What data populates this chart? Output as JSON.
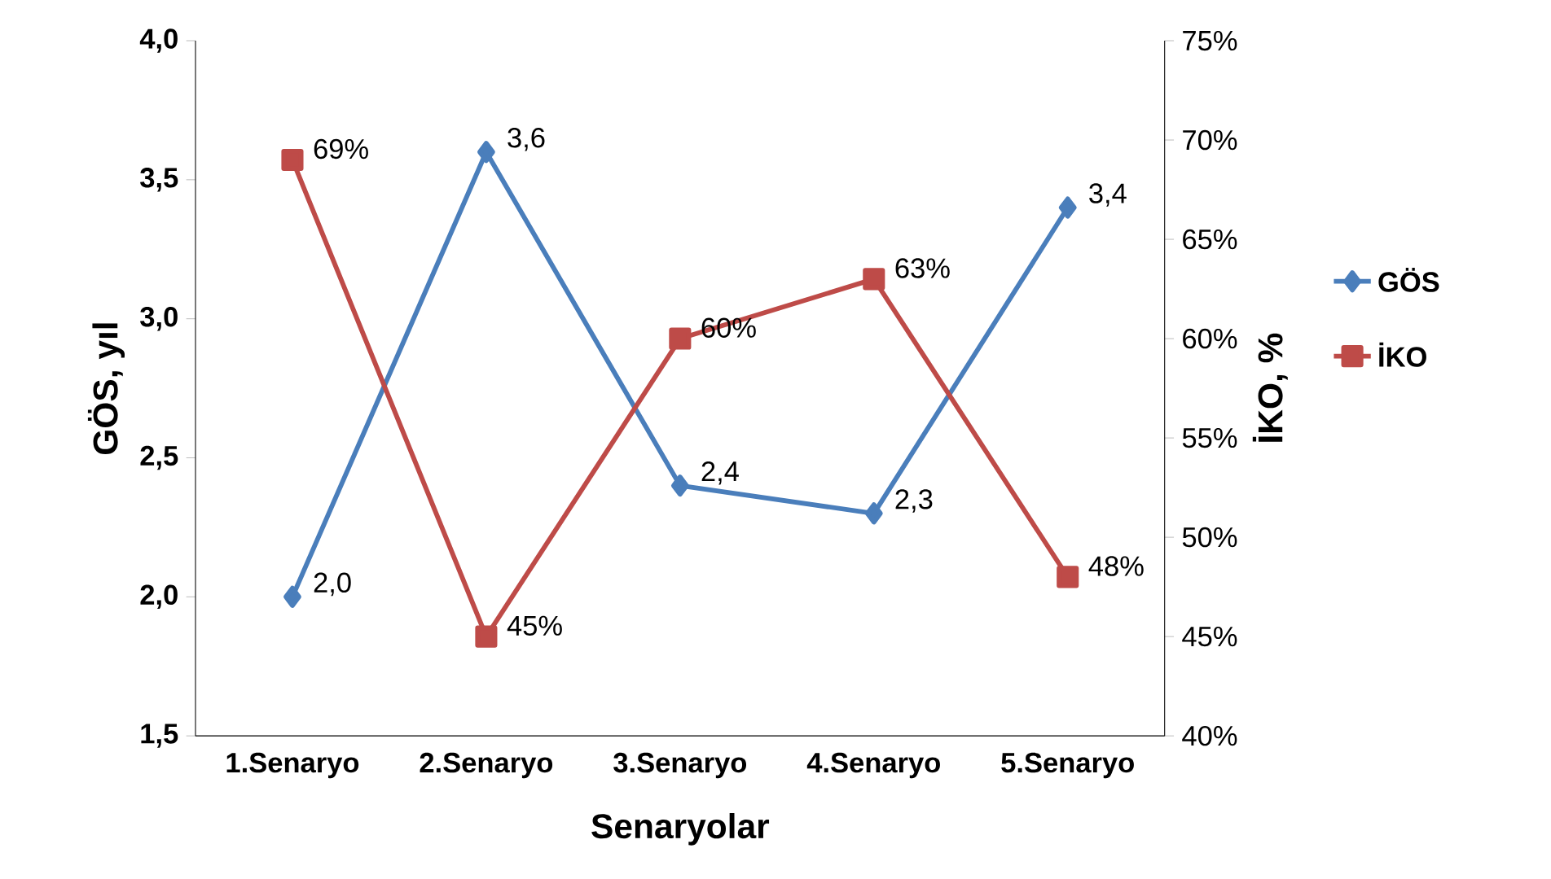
{
  "chart_data": {
    "type": "line",
    "categories": [
      "1.Senaryo",
      "2.Senaryo",
      "3.Senaryo",
      "4.Senaryo",
      "5.Senaryo"
    ],
    "xlabel": "Senaryolar",
    "ylabel": "GÖS, yıl",
    "y2label": "İKO, %",
    "series": [
      {
        "name": "GÖS",
        "color": "#4a7ebb",
        "marker": "diamond",
        "values": [
          2.0,
          3.6,
          2.4,
          2.3,
          3.4
        ],
        "value_labels": [
          "2,0",
          "3,6",
          "2,4",
          "2,3",
          "3,4"
        ]
      },
      {
        "name": "İKO",
        "color": "#be4b48",
        "marker": "square",
        "axis": "y2",
        "values": [
          69,
          45,
          60,
          63,
          48
        ],
        "value_labels": [
          "69%",
          "45%",
          "60%",
          "63%",
          "48%"
        ]
      }
    ],
    "ylim": [
      1.5,
      4.0
    ],
    "yticks": [
      {
        "value": 1.5,
        "label": "1,5"
      },
      {
        "value": 2.0,
        "label": "2,0"
      },
      {
        "value": 2.5,
        "label": "2,5"
      },
      {
        "value": 3.0,
        "label": "3,0"
      },
      {
        "value": 3.5,
        "label": "3,5"
      },
      {
        "value": 4.0,
        "label": "4,0"
      }
    ],
    "y2lim": [
      40,
      75
    ],
    "y2ticks": [
      {
        "value": 40,
        "label": "40%"
      },
      {
        "value": 45,
        "label": "45%"
      },
      {
        "value": 50,
        "label": "50%"
      },
      {
        "value": 55,
        "label": "55%"
      },
      {
        "value": 60,
        "label": "60%"
      },
      {
        "value": 65,
        "label": "65%"
      },
      {
        "value": 70,
        "label": "70%"
      },
      {
        "value": 75,
        "label": "75%"
      }
    ],
    "legend": "right",
    "line_style": "solid"
  }
}
